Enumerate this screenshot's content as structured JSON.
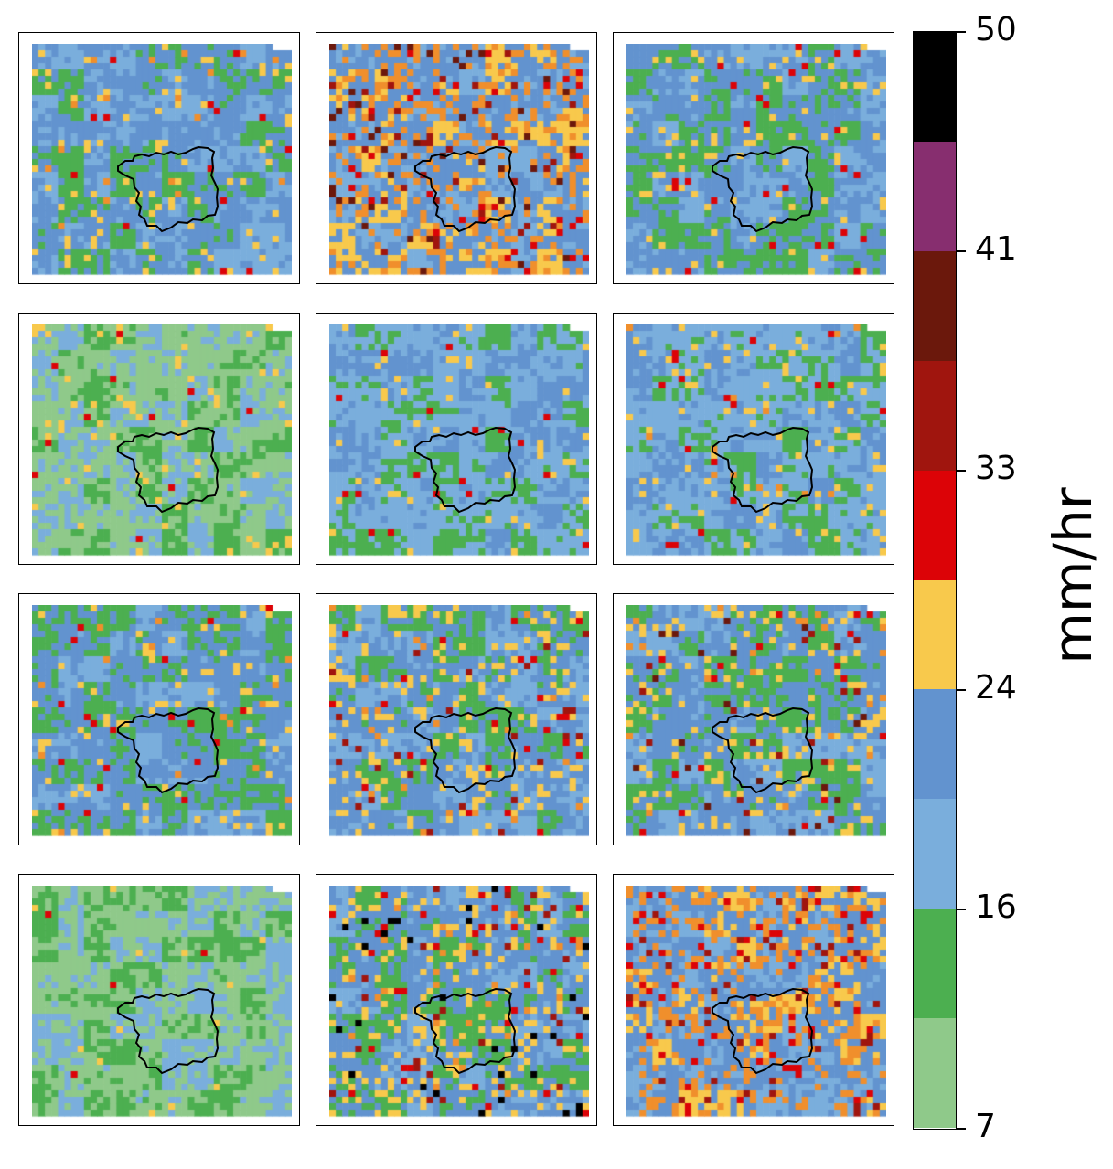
{
  "colorbar": {
    "unit_label": "mm/hr",
    "tick_labels": [
      "50",
      "41",
      "33",
      "24",
      "16",
      "7"
    ],
    "bins": [
      {
        "color": "#000000"
      },
      {
        "color": "#872e6f"
      },
      {
        "color": "#6b180c"
      },
      {
        "color": "#a0150e"
      },
      {
        "color": "#dc0307"
      },
      {
        "color": "#f8c94c"
      },
      {
        "color": "#6293cf"
      },
      {
        "color": "#7aaedc"
      },
      {
        "color": "#4caf50"
      },
      {
        "color": "#8fc98a"
      }
    ]
  },
  "map_panels": [
    {
      "dominant": [
        "#7aaedc",
        "#6293cf",
        "#4caf50"
      ],
      "accent": [
        "#f8c94c",
        "#f08f2c",
        "#dc0307"
      ],
      "hot_share": 0.08
    },
    {
      "dominant": [
        "#7aaedc",
        "#6293cf",
        "#f8c94c"
      ],
      "accent": [
        "#f08f2c",
        "#dc0307",
        "#a0150e",
        "#6b180c"
      ],
      "hot_share": 0.28
    },
    {
      "dominant": [
        "#7aaedc",
        "#6293cf",
        "#4caf50"
      ],
      "accent": [
        "#f8c94c",
        "#dc0307"
      ],
      "hot_share": 0.07
    },
    {
      "dominant": [
        "#4caf50",
        "#8fc98a",
        "#7aaedc"
      ],
      "accent": [
        "#f8c94c",
        "#dc0307"
      ],
      "hot_share": 0.05
    },
    {
      "dominant": [
        "#4caf50",
        "#7aaedc",
        "#6293cf"
      ],
      "accent": [
        "#f8c94c",
        "#dc0307"
      ],
      "hot_share": 0.05
    },
    {
      "dominant": [
        "#4caf50",
        "#7aaedc",
        "#6293cf"
      ],
      "accent": [
        "#f8c94c",
        "#dc0307",
        "#f08f2c"
      ],
      "hot_share": 0.07
    },
    {
      "dominant": [
        "#7aaedc",
        "#6293cf",
        "#4caf50"
      ],
      "accent": [
        "#f8c94c",
        "#f08f2c",
        "#dc0307"
      ],
      "hot_share": 0.08
    },
    {
      "dominant": [
        "#7aaedc",
        "#6293cf",
        "#4caf50"
      ],
      "accent": [
        "#f8c94c",
        "#f08f2c",
        "#dc0307",
        "#a0150e"
      ],
      "hot_share": 0.18
    },
    {
      "dominant": [
        "#7aaedc",
        "#6293cf",
        "#4caf50"
      ],
      "accent": [
        "#f8c94c",
        "#f08f2c",
        "#dc0307",
        "#a0150e",
        "#6b180c"
      ],
      "hot_share": 0.16
    },
    {
      "dominant": [
        "#4caf50",
        "#8fc98a",
        "#7aaedc"
      ],
      "accent": [
        "#f8c94c",
        "#dc0307"
      ],
      "hot_share": 0.02
    },
    {
      "dominant": [
        "#7aaedc",
        "#6293cf",
        "#4caf50"
      ],
      "accent": [
        "#f8c94c",
        "#f08f2c",
        "#dc0307",
        "#a0150e",
        "#000000"
      ],
      "hot_share": 0.22
    },
    {
      "dominant": [
        "#7aaedc",
        "#6293cf",
        "#f8c94c"
      ],
      "accent": [
        "#f08f2c",
        "#dc0307",
        "#a0150e"
      ],
      "hot_share": 0.26
    }
  ]
}
